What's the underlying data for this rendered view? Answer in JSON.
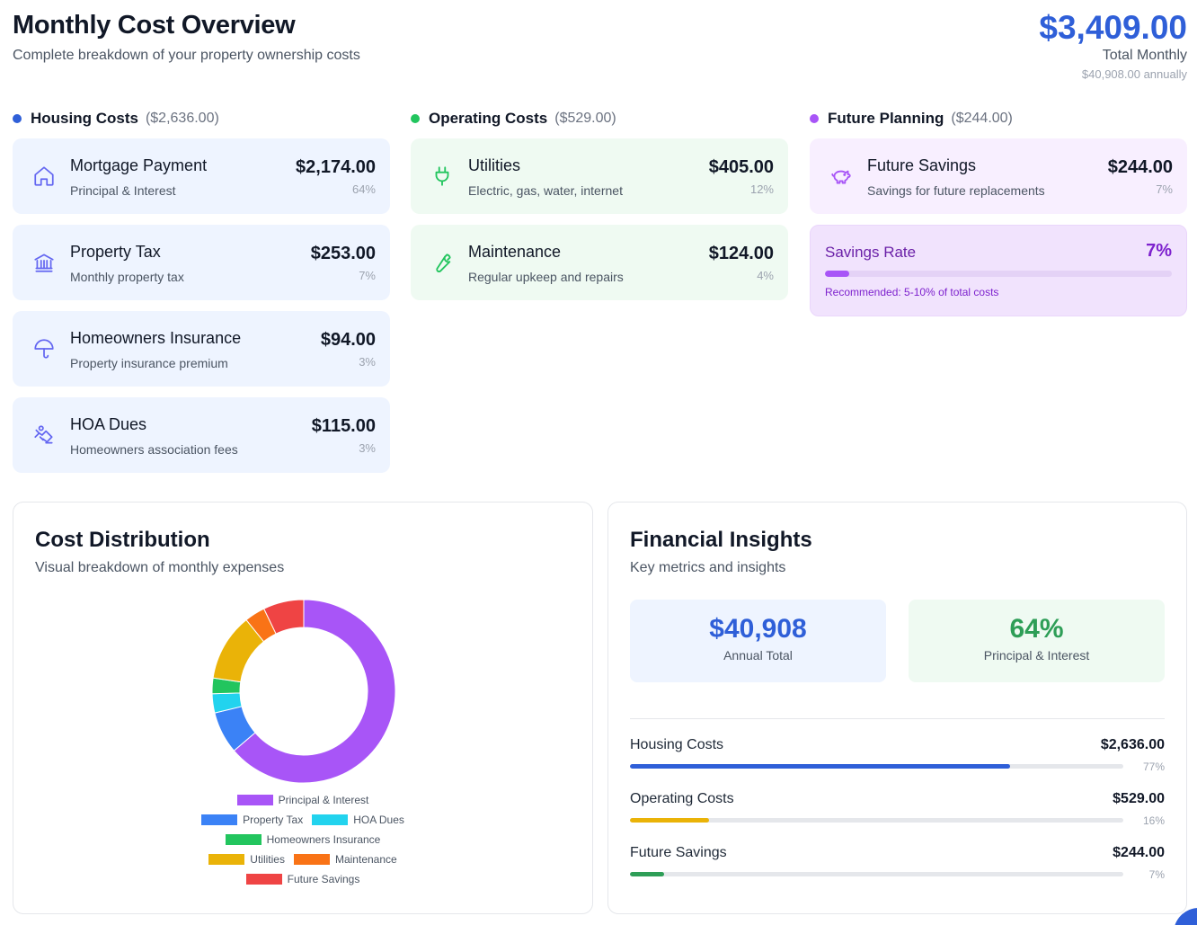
{
  "header": {
    "title": "Monthly Cost Overview",
    "subtitle": "Complete breakdown of your property ownership costs",
    "total_amount": "$3,409.00",
    "total_label": "Total Monthly",
    "total_annual": "$40,908.00 annually"
  },
  "categories": {
    "housing": {
      "title": "Housing Costs",
      "total": "($2,636.00)",
      "color": "#2f5fd8",
      "items": [
        {
          "name": "Mortgage Payment",
          "desc": "Principal & Interest",
          "amount": "$2,174.00",
          "pct": "64%",
          "icon": "home-icon"
        },
        {
          "name": "Property Tax",
          "desc": "Monthly property tax",
          "amount": "$253.00",
          "pct": "7%",
          "icon": "bank-icon"
        },
        {
          "name": "Homeowners Insurance",
          "desc": "Property insurance premium",
          "amount": "$94.00",
          "pct": "3%",
          "icon": "umbrella-icon"
        },
        {
          "name": "HOA Dues",
          "desc": "Homeowners association fees",
          "amount": "$115.00",
          "pct": "3%",
          "icon": "handshake-icon"
        }
      ]
    },
    "operating": {
      "title": "Operating Costs",
      "total": "($529.00)",
      "color": "#22c55e",
      "items": [
        {
          "name": "Utilities",
          "desc": "Electric, gas, water, internet",
          "amount": "$405.00",
          "pct": "12%",
          "icon": "plug-icon"
        },
        {
          "name": "Maintenance",
          "desc": "Regular upkeep and repairs",
          "amount": "$124.00",
          "pct": "4%",
          "icon": "wrench-icon"
        }
      ]
    },
    "future": {
      "title": "Future Planning",
      "total": "($244.00)",
      "color": "#a855f7",
      "items": [
        {
          "name": "Future Savings",
          "desc": "Savings for future replacements",
          "amount": "$244.00",
          "pct": "7%",
          "icon": "piggy-bank-icon"
        }
      ],
      "savings_rate": {
        "label": "Savings Rate",
        "value": "7%",
        "fill_percent": 7,
        "note": "Recommended: 5-10% of total costs"
      }
    }
  },
  "distribution": {
    "title": "Cost Distribution",
    "subtitle": "Visual breakdown of monthly expenses"
  },
  "chart_data": {
    "type": "pie",
    "donut": true,
    "categories": [
      "Principal & Interest",
      "Property Tax",
      "HOA Dues",
      "Homeowners Insurance",
      "Utilities",
      "Maintenance",
      "Future Savings"
    ],
    "values": [
      2174,
      253,
      115,
      94,
      405,
      124,
      244
    ],
    "colors": [
      "#a855f7",
      "#3b82f6",
      "#22d3ee",
      "#22c55e",
      "#eab308",
      "#f97316",
      "#ef4444"
    ],
    "legend": {
      "placement": "bottom",
      "rows": [
        [
          0
        ],
        [
          1,
          2
        ],
        [
          3
        ],
        [
          4,
          5
        ],
        [
          6
        ]
      ]
    }
  },
  "insights": {
    "title": "Financial Insights",
    "subtitle": "Key metrics and insights",
    "stats": [
      {
        "value": "$40,908",
        "label": "Annual Total"
      },
      {
        "value": "64%",
        "label": "Principal & Interest"
      }
    ],
    "metrics": [
      {
        "name": "Housing Costs",
        "amount": "$2,636.00",
        "pct": "77%",
        "fill_percent": 77,
        "color": "#2f5fd8"
      },
      {
        "name": "Operating Costs",
        "amount": "$529.00",
        "pct": "16%",
        "fill_percent": 16,
        "color": "#eab308"
      },
      {
        "name": "Future Savings",
        "amount": "$244.00",
        "pct": "7%",
        "fill_percent": 7,
        "color": "#2e9e57"
      }
    ]
  }
}
